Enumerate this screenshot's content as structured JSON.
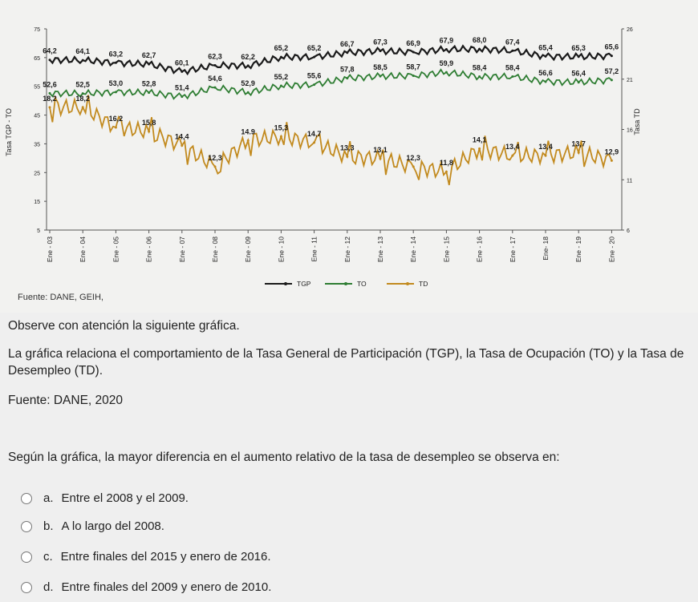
{
  "chart_data": {
    "type": "line",
    "categories": [
      "Ene - 03",
      "Ene - 04",
      "Ene - 05",
      "Ene - 06",
      "Ene - 07",
      "Ene - 08",
      "Ene - 09",
      "Ene - 10",
      "Ene - 11",
      "Ene - 12",
      "Ene - 13",
      "Ene - 14",
      "Ene - 15",
      "Ene - 16",
      "Ene - 17",
      "Ene- 18",
      "Ene - 19",
      "Ene - 20"
    ],
    "ylabel_left": "Tasa TGP - TO",
    "ylabel_right": "Tasa TD",
    "left_ticks": [
      "75",
      "65",
      "55",
      "45",
      "35",
      "25",
      "15",
      "5"
    ],
    "right_ticks": [
      "26",
      "21",
      "16",
      "11",
      "6"
    ],
    "ylim_left": [
      5,
      75
    ],
    "ylim_right": [
      6,
      26
    ],
    "series": [
      {
        "name": "TGP",
        "color": "#1a1a1a",
        "values": [
          64.2,
          64.1,
          63.2,
          62.7,
          60.1,
          62.3,
          62.2,
          65.2,
          65.2,
          66.7,
          67.3,
          66.9,
          67.9,
          68.0,
          67.4,
          65.4,
          65.3,
          65.6
        ],
        "labels": [
          "64,2",
          "64,1",
          "63,2",
          "62,7",
          "60,1",
          "62,3",
          "62,2",
          "65,2",
          "65,2",
          "66,7",
          "67,3",
          "66,9",
          "67,9",
          "68,0",
          "67,4",
          "65,4",
          "65,3",
          "65,6"
        ]
      },
      {
        "name": "TO",
        "color": "#2e7d32",
        "values": [
          52.6,
          52.5,
          53.0,
          52.8,
          51.4,
          54.6,
          52.9,
          55.2,
          55.6,
          57.8,
          58.5,
          58.7,
          59.9,
          58.4,
          58.4,
          56.6,
          56.4,
          57.2
        ],
        "labels": [
          "52,6",
          "52,5",
          "53,0",
          "52,8",
          "51,4",
          "54,6",
          "52,9",
          "55,2",
          "55,6",
          "57,8",
          "58,5",
          "58,7",
          "59,9",
          "58,4",
          "58,4",
          "56,6",
          "56,4",
          "57,2"
        ]
      },
      {
        "name": "TD",
        "color": "#c28a1e",
        "values": [
          18.2,
          18.2,
          16.2,
          15.8,
          14.4,
          12.3,
          14.9,
          15.3,
          14.7,
          13.3,
          13.1,
          12.3,
          11.8,
          14.1,
          13.4,
          13.4,
          13.7,
          12.9
        ],
        "labels": [
          "18,2",
          "18,2",
          "16,2",
          "15,8",
          "14,4",
          "12,3",
          "14.9",
          "15,3",
          "14,7",
          "13,3",
          "13,1",
          "12,3",
          "11,8",
          "14,1",
          "13,4",
          "13,4",
          "13,7",
          "12,9"
        ]
      }
    ]
  },
  "chart_source": "Fuente: DANE, GEIH,",
  "text": {
    "observe": "Observe con atención la siguiente gráfica.",
    "description": "La gráfica relaciona el comportamiento de la Tasa General de Participación (TGP), la Tasa de Ocupación (TO) y la Tasa de Desempleo (TD).",
    "source": "Fuente: DANE, 2020",
    "question": "Según la gráfica, la mayor diferencia en el aumento relativo de la tasa de desempleo se observa en:"
  },
  "options": [
    {
      "letter": "a.",
      "label": "Entre el 2008 y el 2009."
    },
    {
      "letter": "b.",
      "label": "A lo largo del 2008."
    },
    {
      "letter": "c.",
      "label": "Entre finales del 2015 y enero de 2016."
    },
    {
      "letter": "d.",
      "label": "Entre finales del 2009 y enero de 2010."
    }
  ]
}
